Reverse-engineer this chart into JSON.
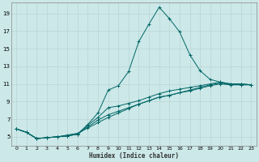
{
  "xlabel": "Humidex (Indice chaleur)",
  "ylabel": "",
  "background_color": "#cce8e8",
  "grid_color": "#b8d4d4",
  "line_color": "#006666",
  "xlim": [
    -0.5,
    23.5
  ],
  "ylim": [
    4.0,
    20.2
  ],
  "yticks": [
    5,
    7,
    9,
    11,
    13,
    15,
    17,
    19
  ],
  "xticks": [
    0,
    1,
    2,
    3,
    4,
    5,
    6,
    7,
    8,
    9,
    10,
    11,
    12,
    13,
    14,
    15,
    16,
    17,
    18,
    19,
    20,
    21,
    22,
    23
  ],
  "series": [
    {
      "x": [
        0,
        1,
        2,
        3,
        4,
        5,
        6,
        7,
        8,
        9,
        10,
        11,
        12,
        13,
        14,
        15,
        16,
        17,
        18,
        19,
        20,
        21,
        22,
        23
      ],
      "y": [
        5.9,
        5.5,
        4.8,
        4.9,
        5.0,
        5.1,
        5.3,
        6.4,
        7.7,
        10.3,
        10.8,
        12.4,
        15.8,
        17.8,
        19.7,
        18.4,
        16.9,
        14.3,
        12.5,
        11.5,
        11.2,
        11.0,
        11.0,
        10.9
      ]
    },
    {
      "x": [
        0,
        1,
        2,
        3,
        4,
        5,
        6,
        7,
        8,
        9,
        10,
        11,
        12,
        13,
        14,
        15,
        16,
        17,
        18,
        19,
        20,
        21,
        22,
        23
      ],
      "y": [
        5.9,
        5.5,
        4.8,
        4.9,
        5.0,
        5.1,
        5.3,
        6.3,
        7.2,
        8.3,
        8.5,
        8.8,
        9.1,
        9.5,
        9.9,
        10.2,
        10.4,
        10.6,
        10.8,
        11.0,
        11.2,
        11.0,
        11.0,
        10.9
      ]
    },
    {
      "x": [
        0,
        1,
        2,
        3,
        4,
        5,
        6,
        7,
        8,
        9,
        10,
        11,
        12,
        13,
        14,
        15,
        16,
        17,
        18,
        19,
        20,
        21,
        22,
        23
      ],
      "y": [
        5.9,
        5.5,
        4.8,
        4.9,
        5.0,
        5.1,
        5.3,
        6.1,
        6.9,
        7.5,
        7.9,
        8.3,
        8.7,
        9.1,
        9.5,
        9.7,
        10.0,
        10.3,
        10.6,
        10.9,
        11.1,
        10.9,
        10.9,
        10.9
      ]
    },
    {
      "x": [
        0,
        1,
        2,
        3,
        4,
        5,
        6,
        7,
        8,
        9,
        10,
        11,
        12,
        13,
        14,
        15,
        16,
        17,
        18,
        19,
        20,
        21,
        22,
        23
      ],
      "y": [
        5.9,
        5.5,
        4.8,
        4.9,
        5.0,
        5.2,
        5.4,
        6.0,
        6.6,
        7.2,
        7.7,
        8.2,
        8.7,
        9.1,
        9.5,
        9.7,
        10.0,
        10.2,
        10.5,
        10.8,
        11.0,
        10.9,
        10.9,
        10.9
      ]
    }
  ]
}
